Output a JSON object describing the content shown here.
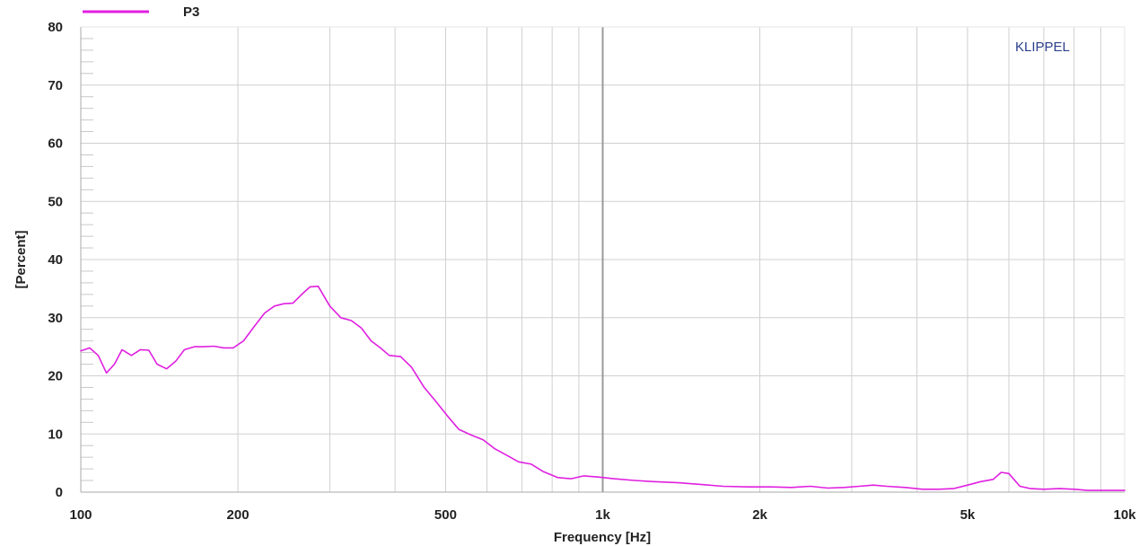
{
  "brand_label": "KLIPPEL",
  "chart_data": {
    "type": "line",
    "xlabel": "Frequency [Hz]",
    "ylabel": "[Percent]",
    "x_scale": "log",
    "xlim": [
      100,
      10000
    ],
    "ylim": [
      0,
      80
    ],
    "grid": true,
    "legend": "top-left",
    "x_ticks": [
      {
        "value": 100,
        "label": "100"
      },
      {
        "value": 200,
        "label": "200"
      },
      {
        "value": 500,
        "label": "500"
      },
      {
        "value": 1000,
        "label": "1k"
      },
      {
        "value": 2000,
        "label": "2k"
      },
      {
        "value": 5000,
        "label": "5k"
      },
      {
        "value": 10000,
        "label": "10k"
      }
    ],
    "y_ticks": [
      {
        "value": 0,
        "label": "0"
      },
      {
        "value": 10,
        "label": "10"
      },
      {
        "value": 20,
        "label": "20"
      },
      {
        "value": 30,
        "label": "30"
      },
      {
        "value": 40,
        "label": "40"
      },
      {
        "value": 50,
        "label": "50"
      },
      {
        "value": 60,
        "label": "60"
      },
      {
        "value": 70,
        "label": "70"
      },
      {
        "value": 80,
        "label": "80"
      }
    ],
    "series": [
      {
        "name": "P3",
        "color": "#e020e0",
        "x": [
          100,
          104,
          108,
          112,
          116,
          120,
          125,
          130,
          135,
          140,
          146,
          152,
          158,
          165,
          172,
          180,
          188,
          196,
          205,
          215,
          225,
          235,
          245,
          255,
          265,
          275,
          285,
          300,
          315,
          330,
          345,
          360,
          375,
          390,
          410,
          430,
          455,
          480,
          505,
          530,
          560,
          590,
          620,
          650,
          690,
          730,
          770,
          820,
          870,
          920,
          980,
          1050,
          1150,
          1250,
          1400,
          1550,
          1700,
          1900,
          2100,
          2300,
          2500,
          2700,
          2900,
          3100,
          3300,
          3500,
          3800,
          4100,
          4400,
          4700,
          5000,
          5300,
          5600,
          5800,
          6000,
          6300,
          6600,
          7000,
          7500,
          8000,
          8500,
          9000,
          9500,
          10000
        ],
        "values": [
          24.3,
          24.8,
          23.5,
          20.5,
          22.0,
          24.5,
          23.5,
          24.5,
          24.4,
          22.0,
          21.2,
          22.5,
          24.5,
          25.0,
          25.0,
          25.1,
          24.8,
          24.8,
          26.0,
          28.5,
          30.8,
          32.0,
          32.4,
          32.5,
          34.0,
          35.3,
          35.4,
          32.0,
          30.0,
          29.5,
          28.2,
          26.0,
          24.8,
          23.5,
          23.3,
          21.5,
          18.0,
          15.5,
          13.0,
          10.8,
          9.8,
          9.0,
          7.5,
          6.5,
          5.2,
          4.8,
          3.5,
          2.5,
          2.3,
          2.8,
          2.6,
          2.3,
          2.0,
          1.8,
          1.6,
          1.3,
          1.0,
          0.9,
          0.9,
          0.8,
          1.0,
          0.7,
          0.8,
          1.0,
          1.2,
          1.0,
          0.8,
          0.5,
          0.5,
          0.6,
          1.2,
          1.8,
          2.2,
          3.4,
          3.2,
          1.0,
          0.6,
          0.5,
          0.6,
          0.5,
          0.3,
          0.3,
          0.3,
          0.3
        ]
      }
    ]
  }
}
